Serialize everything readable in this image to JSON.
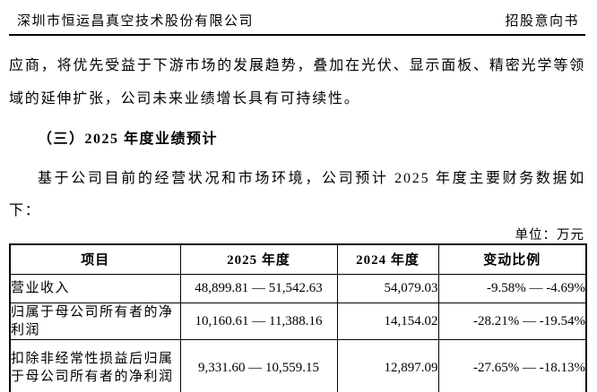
{
  "header": {
    "company": "深圳市恒运昌真空技术股份有限公司",
    "doc_type": "招股意向书"
  },
  "body": {
    "paragraph_continuation": "应商，将优先受益于下游市场的发展趋势，叠加在光伏、显示面板、精密光学等领域的延伸扩张，公司未来业绩增长具有可持续性。",
    "section_heading": "（三）2025 年度业绩预计",
    "paragraph_intro": "基于公司目前的经营状况和市场环境，公司预计 2025 年度主要财务数据如下：",
    "unit_label": "单位：万元"
  },
  "table": {
    "headers": [
      "项目",
      "2025 年度",
      "2024 年度",
      "变动比例"
    ],
    "rows": [
      {
        "item": "营业收入",
        "y2025": "48,899.81 — 51,542.63",
        "y2024": "54,079.03",
        "change": "-9.58% — -4.69%"
      },
      {
        "item": "归属于母公司所有者的净利润",
        "y2025": "10,160.61 — 11,388.16",
        "y2024": "14,154.02",
        "change": "-28.21% — -19.54%"
      },
      {
        "item": "扣除非经常性损益后归属于母公司所有者的净利润",
        "y2025": "9,331.60 — 10,559.15",
        "y2024": "12,897.09",
        "change": "-27.65% — -18.13%"
      }
    ]
  }
}
